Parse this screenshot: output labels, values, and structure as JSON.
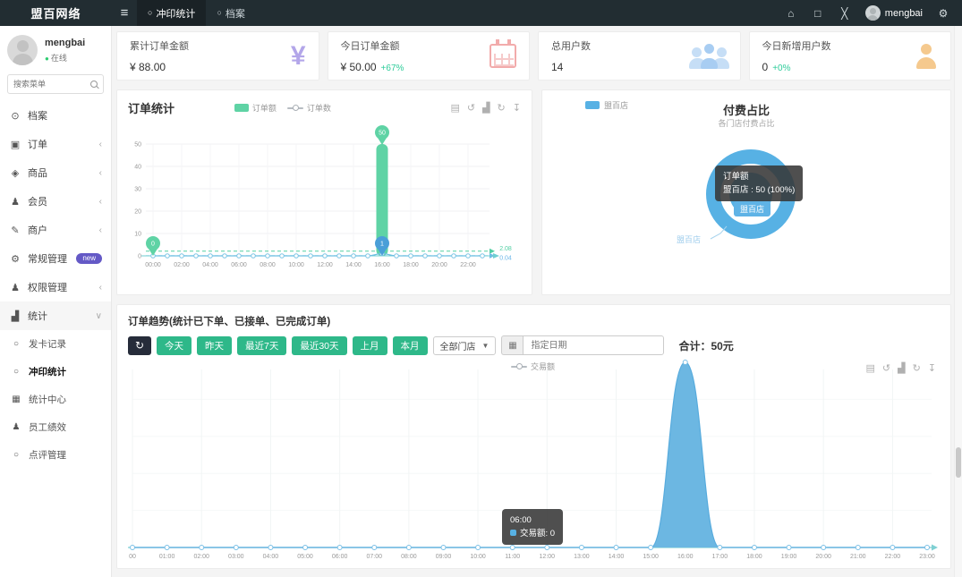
{
  "navbar": {
    "logo": "盟百网络",
    "tabs": [
      {
        "label": "冲印统计",
        "active": true
      },
      {
        "label": "档案",
        "active": false
      }
    ],
    "username": "mengbai"
  },
  "sidebar": {
    "username": "mengbai",
    "status": "在线",
    "search_placeholder": "搜索菜单",
    "menu": [
      {
        "label": "档案",
        "icon": "file-icon"
      },
      {
        "label": "订单",
        "icon": "order-icon",
        "chevron": true
      },
      {
        "label": "商品",
        "icon": "goods-icon",
        "chevron": true
      },
      {
        "label": "会员",
        "icon": "member-icon",
        "chevron": true
      },
      {
        "label": "商户",
        "icon": "merchant-icon",
        "chevron": true
      },
      {
        "label": "常规管理",
        "icon": "settings-icon",
        "badge": "new"
      },
      {
        "label": "权限管理",
        "icon": "permissions-icon",
        "chevron": true
      },
      {
        "label": "统计",
        "icon": "stats-icon",
        "expanded": true
      }
    ],
    "submenu": [
      {
        "label": "发卡记录",
        "icon": "circle-icon",
        "active": false
      },
      {
        "label": "冲印统计",
        "icon": "circle-icon",
        "active": true
      },
      {
        "label": "统计中心",
        "icon": "chart-icon",
        "active": false
      },
      {
        "label": "员工绩效",
        "icon": "person-icon",
        "active": false
      },
      {
        "label": "点评管理",
        "icon": "circle-icon",
        "active": false
      }
    ]
  },
  "stat_cards": [
    {
      "title": "累计订单金额",
      "value": "¥ 88.00",
      "delta": "",
      "icon": "yen-icon",
      "color": "#b3a6e9"
    },
    {
      "title": "今日订单金额",
      "value": "¥ 50.00",
      "delta": "+67%",
      "icon": "calendar-icon",
      "color": "#f2abab"
    },
    {
      "title": "总用户数",
      "value": "14",
      "delta": "",
      "icon": "users-icon",
      "color": "#a8cdf2"
    },
    {
      "title": "今日新增用户数",
      "value": "0",
      "delta": "+0%",
      "icon": "user-icon",
      "color": "#f5c98e"
    }
  ],
  "order_stats_card": {
    "title": "订单统计"
  },
  "pie_card": {
    "title": "付费占比",
    "subtitle": "各门店付费占比",
    "center_label": "盟百店",
    "outer_label": "盟百店",
    "tooltip": {
      "title": "订单额",
      "text": "盟百店 : 50 (100%)"
    }
  },
  "trend_card": {
    "title": "订单趋势(统计已下单、已接单、已完成订单)",
    "filters": [
      "今天",
      "昨天",
      "最近7天",
      "最近30天",
      "上月",
      "本月"
    ],
    "store_select": "全部门店",
    "date_placeholder": "指定日期",
    "total_label": "合计：50元",
    "tooltip": {
      "time": "06:00",
      "text": "交易额: 0"
    }
  },
  "toolbox_icons": [
    "data-view",
    "restore",
    "bar-chart",
    "refresh",
    "download"
  ],
  "colors": {
    "accent_green": "#2eb889",
    "chart_green": "#5fd3a5",
    "chart_blue": "#57b1e4",
    "badge_purple": "#6459c6",
    "status_green": "#2ecc71",
    "navbar_dark": "#222d32"
  },
  "chart_data": [
    {
      "id": "order-stats",
      "type": "bar",
      "title": "订单统计",
      "x": [
        "00:00",
        "01:00",
        "02:00",
        "03:00",
        "04:00",
        "05:00",
        "06:00",
        "07:00",
        "08:00",
        "09:00",
        "10:00",
        "11:00",
        "12:00",
        "13:00",
        "14:00",
        "15:00",
        "16:00",
        "17:00",
        "18:00",
        "19:00",
        "20:00",
        "21:00",
        "22:00",
        "23:00"
      ],
      "x_label_every": 2,
      "ylim": [
        0,
        50
      ],
      "yticks": [
        0,
        10,
        20,
        30,
        40,
        50
      ],
      "grid": true,
      "legend_position": "top-center",
      "series": [
        {
          "name": "订单额",
          "type": "bar",
          "color": "#5fd3a5",
          "values": [
            0,
            0,
            0,
            0,
            0,
            0,
            0,
            0,
            0,
            0,
            0,
            0,
            0,
            0,
            0,
            0,
            50,
            0,
            0,
            0,
            0,
            0,
            0,
            0
          ],
          "average": 2.08,
          "average_label": "2.08",
          "max_point": {
            "x": "16:00",
            "value": 50
          },
          "min_point": {
            "x": "00:00",
            "value": 0
          }
        },
        {
          "name": "订单数",
          "type": "line",
          "color": "#6cbfe2",
          "values": [
            0,
            0,
            0,
            0,
            0,
            0,
            0,
            0,
            0,
            0,
            0,
            0,
            0,
            0,
            0,
            0,
            1,
            0,
            0,
            0,
            0,
            0,
            0,
            0
          ],
          "average": 0.04,
          "average_label": "0.04",
          "max_point": {
            "x": "16:00",
            "value": 1
          }
        }
      ]
    },
    {
      "id": "pay-share",
      "type": "pie",
      "title": "付费占比",
      "subtitle": "各门店付费占比",
      "slices": [
        {
          "name": "盟百店",
          "value": 50,
          "percent": "100%",
          "color": "#57b1e4"
        }
      ]
    },
    {
      "id": "order-trend",
      "type": "area",
      "x": [
        "00",
        "01:00",
        "02:00",
        "03:00",
        "04:00",
        "05:00",
        "06:00",
        "07:00",
        "08:00",
        "09:00",
        "10:00",
        "11:00",
        "12:00",
        "13:00",
        "14:00",
        "15:00",
        "16:00",
        "17:00",
        "18:00",
        "19:00",
        "20:00",
        "21:00",
        "22:00",
        "23:00"
      ],
      "ylim": [
        0,
        50
      ],
      "grid": true,
      "total": "50元",
      "series": [
        {
          "name": "交易额",
          "type": "area",
          "color": "#6cb7e2",
          "values": [
            0,
            0,
            0,
            0,
            0,
            0,
            0,
            0,
            0,
            0,
            0,
            0,
            0,
            0,
            0,
            0,
            50,
            0,
            0,
            0,
            0,
            0,
            0,
            0
          ]
        }
      ]
    }
  ]
}
